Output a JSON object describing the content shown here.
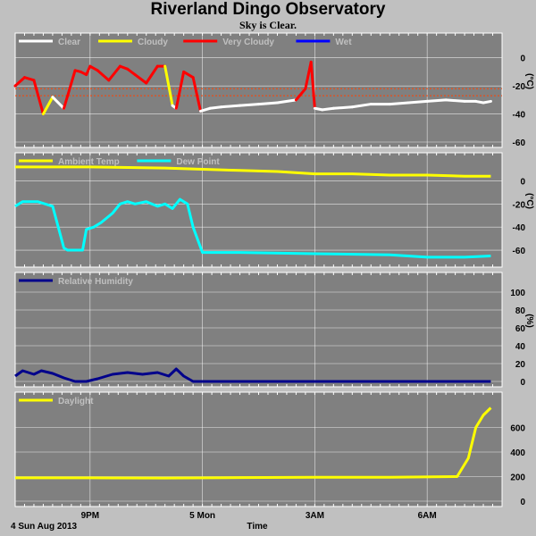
{
  "title": "Riverland Dingo Observatory",
  "subtitle": "Sky is Clear.",
  "footer": {
    "date": "4 Sun Aug 2013",
    "time_label": "Time"
  },
  "colors": {
    "panel_bg": "#808080",
    "page_bg": "#c0c0c0",
    "grid": "#ffffff",
    "limit": "#ff4000"
  },
  "chart_data": [
    {
      "type": "line",
      "id": "sky",
      "unit_label": "(°C)",
      "ylim": [
        -60,
        10
      ],
      "yticks": [
        "0",
        "-20",
        "-40",
        "-60"
      ],
      "ytick_values": [
        0,
        -20,
        -40,
        -60
      ],
      "limits": [
        -22,
        -27
      ],
      "legend": [
        {
          "name": "Clear",
          "color": "#ffffff"
        },
        {
          "name": "Cloudy",
          "color": "#ffff00"
        },
        {
          "name": "Very Cloudy",
          "color": "#ff0000"
        },
        {
          "name": "Wet",
          "color": "#0000ff"
        }
      ],
      "x_hours": [
        0,
        0.25,
        0.5,
        0.75,
        1.0,
        1.3,
        1.6,
        1.75,
        1.9,
        2.0,
        2.2,
        2.5,
        2.8,
        3.0,
        3.2,
        3.5,
        3.8,
        4.0,
        4.2,
        4.3,
        4.5,
        4.75,
        4.95,
        5.2,
        5.5,
        6.0,
        6.5,
        7.0,
        7.5,
        7.75,
        7.9,
        8.0,
        8.2,
        8.5,
        9.0,
        9.5,
        10.0,
        10.5,
        11.0,
        11.5,
        12.0,
        12.3,
        12.5,
        12.7
      ],
      "y_values": [
        -20,
        -14,
        -16,
        -40,
        -28,
        -36,
        -9,
        -10,
        -12,
        -6,
        -9,
        -16,
        -6,
        -8,
        -12,
        -18,
        -6,
        -6,
        -34,
        -36,
        -10,
        -14,
        -38,
        -36,
        -35,
        -34,
        -33,
        -32,
        -30,
        -22,
        -3,
        -36,
        -37,
        -36,
        -35,
        -33,
        -33,
        -32,
        -31,
        -30,
        -31,
        -31,
        -32,
        -31
      ],
      "segment_colors": [
        "#ff0000",
        "#ff0000",
        "#ff0000",
        "#ffff00",
        "#ffffff",
        "#ff0000",
        "#ff0000",
        "#ff0000",
        "#ff0000",
        "#ff0000",
        "#ff0000",
        "#ff0000",
        "#ff0000",
        "#ff0000",
        "#ff0000",
        "#ff0000",
        "#ff0000",
        "#ffff00",
        "#ffffff",
        "#ff0000",
        "#ff0000",
        "#ff0000",
        "#ffffff",
        "#ffffff",
        "#ffffff",
        "#ffffff",
        "#ffffff",
        "#ffffff",
        "#ff0000",
        "#ff0000",
        "#ff0000",
        "#ffffff",
        "#ffffff",
        "#ffffff",
        "#ffffff",
        "#ffffff",
        "#ffffff",
        "#ffffff",
        "#ffffff",
        "#ffffff",
        "#ffffff",
        "#ffffff",
        "#ffffff"
      ]
    },
    {
      "type": "line",
      "id": "temp",
      "unit_label": "(°C)",
      "ylim": [
        -70,
        15
      ],
      "yticks": [
        "0",
        "-20",
        "-40",
        "-60"
      ],
      "ytick_values": [
        0,
        -20,
        -40,
        -60
      ],
      "legend": [
        {
          "name": "Ambient Temp",
          "color": "#ffff00"
        },
        {
          "name": "Dew Point",
          "color": "#00ffff"
        }
      ],
      "series": [
        {
          "name": "Ambient Temp",
          "color": "#ffff00",
          "x_hours": [
            0,
            2,
            4,
            6,
            7,
            8,
            9,
            10,
            11,
            12,
            12.7
          ],
          "values": [
            12,
            12,
            11,
            9,
            8,
            6,
            6,
            5,
            5,
            4,
            4
          ]
        },
        {
          "name": "Dew Point",
          "color": "#00ffff",
          "x_hours": [
            0,
            0.2,
            0.6,
            1.0,
            1.3,
            1.4,
            1.8,
            1.9,
            2.1,
            2.3,
            2.6,
            2.8,
            3.0,
            3.2,
            3.5,
            3.8,
            4.0,
            4.2,
            4.4,
            4.6,
            4.75,
            5.0,
            6.0,
            8.0,
            10.0,
            11.0,
            12.0,
            12.7
          ],
          "values": [
            -22,
            -18,
            -18,
            -22,
            -58,
            -60,
            -60,
            -42,
            -40,
            -36,
            -28,
            -20,
            -18,
            -20,
            -18,
            -22,
            -20,
            -24,
            -16,
            -20,
            -40,
            -62,
            -62,
            -63,
            -64,
            -66,
            -66,
            -65
          ]
        }
      ]
    },
    {
      "type": "line",
      "id": "humidity",
      "unit_label": "(%)",
      "ylim": [
        0,
        110
      ],
      "yticks": [
        "100",
        "80",
        "60",
        "40",
        "20",
        "0"
      ],
      "ytick_values": [
        100,
        80,
        60,
        40,
        20,
        0
      ],
      "legend": [
        {
          "name": "Relative Humidity",
          "color": "#00008b"
        }
      ],
      "series": [
        {
          "name": "Relative Humidity",
          "color": "#00008b",
          "x_hours": [
            0,
            0.2,
            0.5,
            0.7,
            1.0,
            1.3,
            1.6,
            1.9,
            2.2,
            2.6,
            3.0,
            3.4,
            3.8,
            4.1,
            4.3,
            4.5,
            4.75,
            5.0,
            12.7
          ],
          "values": [
            6,
            12,
            8,
            12,
            9,
            4,
            0,
            0,
            3,
            8,
            10,
            8,
            10,
            6,
            14,
            6,
            0,
            0,
            0
          ]
        }
      ]
    },
    {
      "type": "line",
      "id": "daylight",
      "unit_label": "",
      "ylim": [
        0,
        800
      ],
      "yticks": [
        "600",
        "400",
        "200",
        "0"
      ],
      "ytick_values": [
        600,
        400,
        200,
        0
      ],
      "legend": [
        {
          "name": "Daylight",
          "color": "#ffff00"
        }
      ],
      "series": [
        {
          "name": "Daylight",
          "color": "#ffff00",
          "x_hours": [
            0,
            2,
            4,
            6,
            8,
            10,
            11.8,
            12.1,
            12.3,
            12.5,
            12.7
          ],
          "values": [
            190,
            190,
            188,
            192,
            195,
            195,
            200,
            350,
            600,
            700,
            760
          ]
        }
      ]
    }
  ],
  "x_axis": {
    "labels": [
      "9PM",
      "5 Mon",
      "3AM",
      "6AM"
    ],
    "label_hours": [
      2,
      5,
      8,
      11
    ]
  }
}
